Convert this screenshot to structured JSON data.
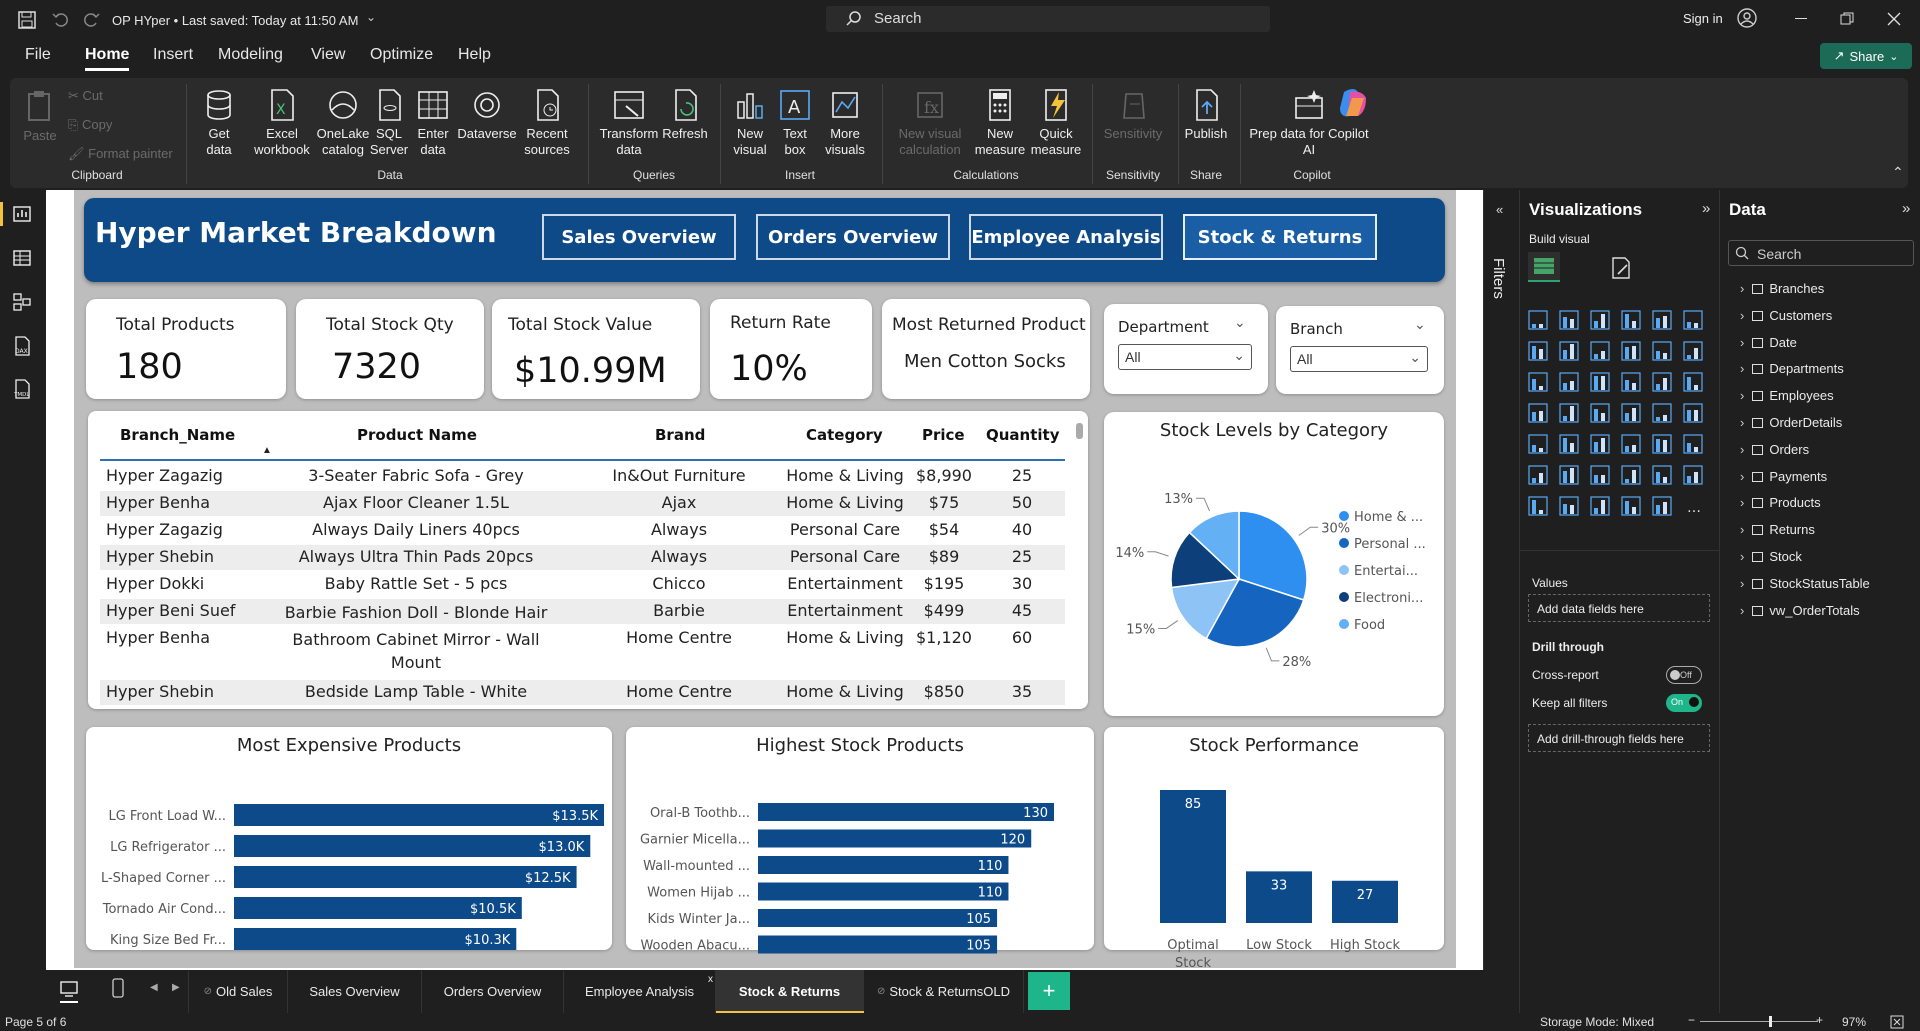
{
  "titlebar": {
    "doc_title": "OP HYper • Last saved: Today at 11:50 AM",
    "search": "Search",
    "signin": "Sign in"
  },
  "menu": [
    "File",
    "Home",
    "Insert",
    "Modeling",
    "View",
    "Optimize",
    "Help"
  ],
  "share": "Share",
  "ribbon": {
    "clipboard": {
      "paste": "Paste",
      "cut": "Cut",
      "copy": "Copy",
      "format_painter": "Format painter",
      "group": "Clipboard"
    },
    "data": {
      "get_data": "Get data",
      "excel": "Excel workbook",
      "onelake": "OneLake catalog",
      "sql": "SQL Server",
      "enter": "Enter data",
      "dataverse": "Dataverse",
      "recent": "Recent sources",
      "group": "Data"
    },
    "queries": {
      "transform": "Transform data",
      "refresh": "Refresh",
      "group": "Queries"
    },
    "insert": {
      "new_visual": "New visual",
      "text_box": "Text box",
      "more_visuals": "More visuals",
      "group": "Insert"
    },
    "calculations": {
      "new_visual_calc": "New visual calculation",
      "new_measure": "New measure",
      "quick_measure": "Quick measure",
      "group": "Calculations"
    },
    "sensitivity": {
      "label": "Sensitivity",
      "group": "Sensitivity"
    },
    "share": {
      "publish": "Publish",
      "group": "Share"
    },
    "copilot": {
      "prep": "Prep data for Copilot AI",
      "group": "Copilot"
    }
  },
  "report": {
    "title": "Hyper Market Breakdown",
    "nav": [
      "Sales Overview",
      "Orders Overview",
      "Employee Analysis",
      "Stock & Returns"
    ],
    "kpis": [
      {
        "title": "Total Products",
        "value": "180"
      },
      {
        "title": "Total Stock Qty",
        "value": "7320"
      },
      {
        "title": "Total Stock Value",
        "value": "$10.99M"
      },
      {
        "title": "Return Rate",
        "value": "10%"
      },
      {
        "title": "Most Returned Product",
        "value": "Men Cotton Socks"
      }
    ],
    "slicers": [
      {
        "title": "Department",
        "value": "All"
      },
      {
        "title": "Branch",
        "value": "All"
      }
    ],
    "table": {
      "headers": [
        "Branch_Name",
        "Product Name",
        "Brand",
        "Category",
        "Price",
        "Quantity"
      ],
      "rows": [
        [
          "Hyper Zagazig",
          "3-Seater Fabric Sofa - Grey",
          "In&Out Furniture",
          "Home & Living",
          "$8,990",
          "25"
        ],
        [
          "Hyper Benha",
          "Ajax Floor Cleaner 1.5L",
          "Ajax",
          "Home & Living",
          "$75",
          "50"
        ],
        [
          "Hyper Zagazig",
          "Always Daily Liners 40pcs",
          "Always",
          "Personal Care",
          "$54",
          "40"
        ],
        [
          "Hyper Shebin",
          "Always Ultra Thin Pads 20pcs",
          "Always",
          "Personal Care",
          "$89",
          "25"
        ],
        [
          "Hyper Dokki",
          "Baby Rattle Set - 5 pcs",
          "Chicco",
          "Entertainment",
          "$195",
          "30"
        ],
        [
          "Hyper Beni Suef",
          "Barbie Fashion Doll - Blonde Hair",
          "Barbie",
          "Entertainment",
          "$499",
          "45"
        ],
        [
          "Hyper Benha",
          "Bathroom Cabinet Mirror - Wall Mount",
          "Home Centre",
          "Home & Living",
          "$1,120",
          "60"
        ],
        [
          "Hyper Shebin",
          "Bedside Lamp Table - White",
          "Home Centre",
          "Home & Living",
          "$850",
          "35"
        ]
      ]
    }
  },
  "chart_data": [
    {
      "type": "pie",
      "title": "Stock Levels by Category",
      "categories": [
        "Home & ...",
        "Personal ...",
        "Entertai...",
        "Electroni...",
        "Food"
      ],
      "values": [
        30,
        28,
        15,
        14,
        13
      ],
      "value_labels": [
        "30%",
        "28%",
        "15%",
        "14%",
        "13%"
      ],
      "colors": [
        "#2e8ff0",
        "#1565c0",
        "#8ec3f5",
        "#0d3f7a",
        "#64b0f5"
      ],
      "legend": "right"
    },
    {
      "type": "bar",
      "orientation": "horizontal",
      "title": "Most Expensive Products",
      "categories": [
        "LG Front Load W...",
        "LG Refrigerator ...",
        "L-Shaped Corner ...",
        "Tornado Air Cond...",
        "King Size Bed Fr..."
      ],
      "values": [
        13.5,
        13.0,
        12.5,
        10.5,
        10.3
      ],
      "value_labels": [
        "$13.5K",
        "$13.0K",
        "$12.5K",
        "$10.5K",
        "$10.3K"
      ],
      "xlim": [
        0,
        13.5
      ]
    },
    {
      "type": "bar",
      "orientation": "horizontal",
      "title": "Highest Stock Products",
      "categories": [
        "Oral-B Toothb...",
        "Garnier Micella...",
        "Wall-mounted ...",
        "Women Hijab ...",
        "Kids Winter Ja...",
        "Wooden Abacu..."
      ],
      "values": [
        130,
        120,
        110,
        110,
        105,
        105
      ],
      "xlim": [
        0,
        130
      ]
    },
    {
      "type": "bar",
      "title": "Stock Performance",
      "categories": [
        "Optimal Stock",
        "Low Stock",
        "High Stock"
      ],
      "values": [
        85,
        33,
        27
      ],
      "ylim": [
        0,
        85
      ]
    }
  ],
  "panes": {
    "filters": "Filters",
    "viz_title": "Visualizations",
    "build_visual": "Build visual",
    "values": "Values",
    "add_data_fields": "Add data fields here",
    "drill_through": "Drill through",
    "cross_report": "Cross-report",
    "cross_state": "Off",
    "keep_filters": "Keep all filters",
    "keep_state": "On",
    "add_drill": "Add drill-through fields here",
    "data_title": "Data",
    "data_search": "Search",
    "tables": [
      "Branches",
      "Customers",
      "Date",
      "Departments",
      "Employees",
      "OrderDetails",
      "Orders",
      "Payments",
      "Products",
      "Returns",
      "Stock",
      "StockStatusTable",
      "vw_OrderTotals"
    ]
  },
  "tabs": [
    "Old Sales",
    "Sales Overview",
    "Orders Overview",
    "Employee Analysis",
    "Stock & Returns",
    "Stock & ReturnsOLD"
  ],
  "status": {
    "page": "Page 5 of 6",
    "storage": "Storage Mode: Mixed",
    "zoom": "97%"
  },
  "colors": {
    "accent": "#0e4a87",
    "bar": "#0d4a8a",
    "toggle_on": "#1fb58a",
    "tab_add": "#1fb58a"
  }
}
